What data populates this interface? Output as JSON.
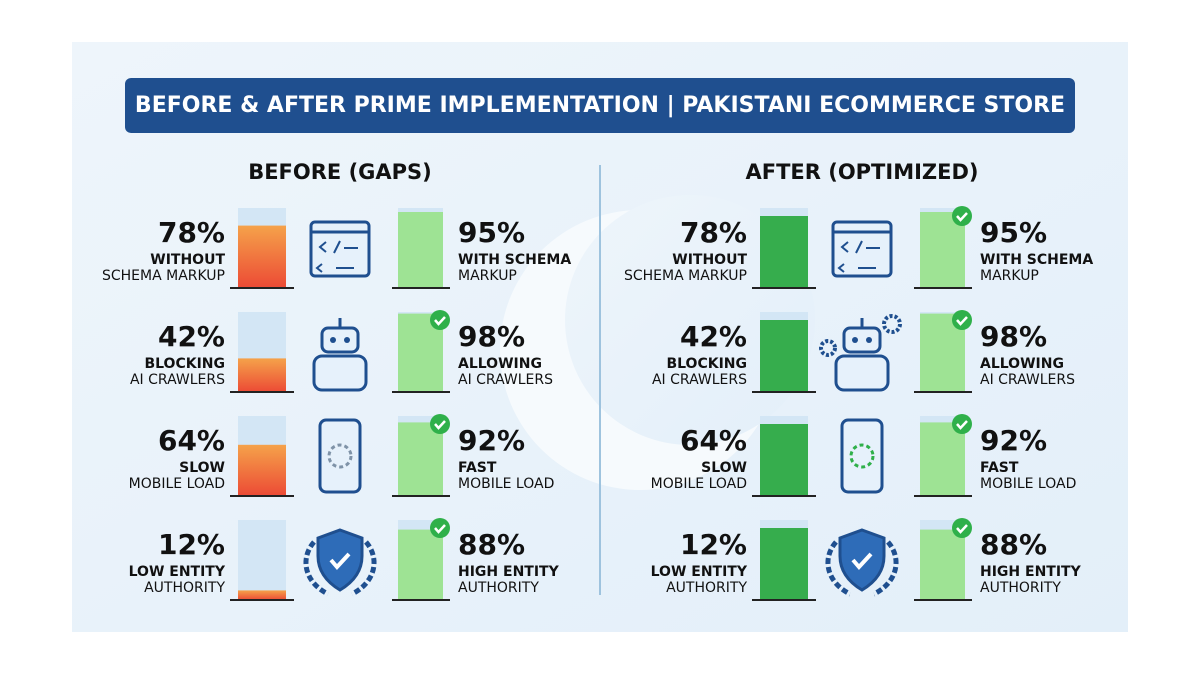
{
  "title": "BEFORE & AFTER PRIME IMPLEMENTATION | PAKISTANI ECOMMERCE STORE",
  "panels": [
    {
      "heading": "BEFORE (GAPS)",
      "rows": [
        {
          "left": {
            "value": {
              "value": 78,
              "label": "78%"
            },
            "lines": [
              "WITHOUT",
              "SCHEMA MARKUP"
            ]
          },
          "right": {
            "value": {
              "value": 95,
              "label": "95%"
            },
            "lines": [
              "WITH SCHEMA",
              "MARKUP"
            ]
          }
        },
        {
          "left": {
            "value": {
              "value": 42,
              "label": "42%"
            },
            "lines": [
              "BLOCKING",
              "AI CRAWLERS"
            ]
          },
          "right": {
            "value": {
              "value": 98,
              "label": "98%"
            },
            "lines": [
              "ALLOWING",
              "AI CRAWLERS"
            ]
          }
        },
        {
          "left": {
            "value": {
              "value": 64,
              "label": "64%"
            },
            "lines": [
              "SLOW",
              "MOBILE LOAD"
            ]
          },
          "right": {
            "value": {
              "value": 92,
              "label": "92%"
            },
            "lines": [
              "FAST",
              "MOBILE LOAD"
            ]
          }
        },
        {
          "left": {
            "value": {
              "value": 12,
              "label": "12%"
            },
            "lines": [
              "LOW ENTITY",
              "AUTHORITY"
            ]
          },
          "right": {
            "value": {
              "value": 88,
              "label": "88%"
            },
            "lines": [
              "HIGH ENTITY",
              "AUTHORITY"
            ]
          }
        }
      ]
    },
    {
      "heading": "AFTER (OPTIMIZED)",
      "rows": [
        {
          "left": {
            "value": {
              "value": 78,
              "label": "78%"
            },
            "lines": [
              "WITHOUT",
              "SCHEMA MARKUP"
            ]
          },
          "right": {
            "value": {
              "value": 95,
              "label": "95%"
            },
            "lines": [
              "WITH SCHEMA",
              "MARKUP"
            ]
          }
        },
        {
          "left": {
            "value": {
              "value": 42,
              "label": "42%"
            },
            "lines": [
              "BLOCKING",
              "AI CRAWLERS"
            ]
          },
          "right": {
            "value": {
              "value": 98,
              "label": "98%"
            },
            "lines": [
              "ALLOWING",
              "AI CRAWLERS"
            ]
          }
        },
        {
          "left": {
            "value": {
              "value": 64,
              "label": "64%"
            },
            "lines": [
              "SLOW",
              "MOBILE LOAD"
            ]
          },
          "right": {
            "value": {
              "value": 92,
              "label": "92%"
            },
            "lines": [
              "FAST",
              "MOBILE LOAD"
            ]
          }
        },
        {
          "left": {
            "value": {
              "value": 12,
              "label": "12%"
            },
            "lines": [
              "LOW ENTITY",
              "AUTHORITY"
            ]
          },
          "right": {
            "value": {
              "value": 88,
              "label": "88%"
            },
            "lines": [
              "HIGH ENTITY",
              "AUTHORITY"
            ]
          }
        }
      ]
    }
  ]
}
